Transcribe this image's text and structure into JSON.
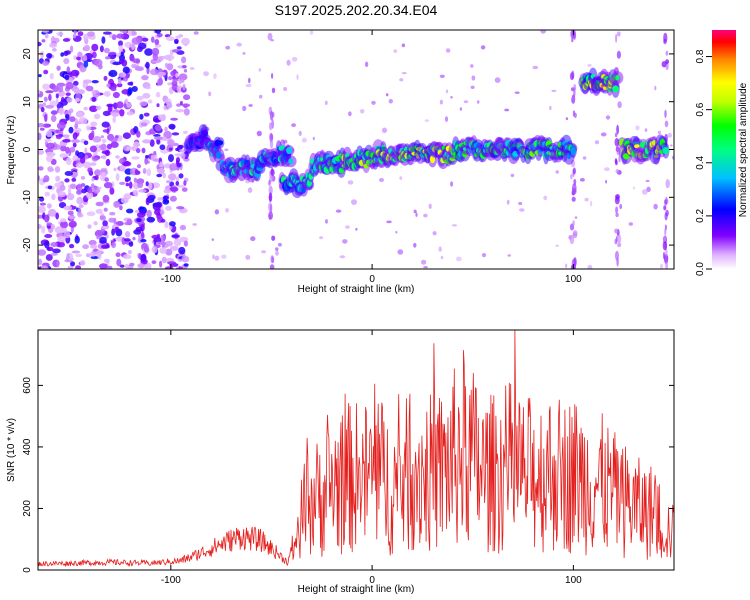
{
  "title": "S197.2025.202.20.34.E04",
  "colors": {
    "snr_line": "#e4201e",
    "spectrogram_scale": [
      "#ffffff",
      "#ff00ff",
      "#8000ff",
      "#0000ff",
      "#00c0ff",
      "#00ff80",
      "#00ff00",
      "#c0ff00",
      "#ffff00",
      "#ff8000",
      "#ff0000"
    ]
  },
  "chart_data": [
    {
      "type": "heatmap",
      "xlabel": "Height of straight line (km)",
      "ylabel": "Frequency (Hz)",
      "xlim": [
        -166,
        150
      ],
      "ylim": [
        -25,
        25
      ],
      "xticks": [
        -100,
        0,
        100
      ],
      "yticks": [
        -20,
        -10,
        0,
        10,
        20
      ],
      "colorbar": {
        "label": "Normalized spectral amplitude",
        "range": [
          0.0,
          0.9
        ],
        "ticks": [
          "0.0",
          "0.2",
          "0.4",
          "0.6",
          "0.8"
        ]
      },
      "band_segments": [
        {
          "x_start": -92,
          "x_end": -82,
          "freq": 2,
          "amp": 0.25
        },
        {
          "x_start": -82,
          "x_end": -75,
          "freq": 0,
          "amp": 0.35
        },
        {
          "x_start": -75,
          "x_end": -55,
          "freq": -4,
          "amp": 0.4
        },
        {
          "x_start": -55,
          "x_end": -40,
          "freq": -1,
          "amp": 0.35
        },
        {
          "x_start": -45,
          "x_end": -30,
          "freq": -7,
          "amp": 0.4
        },
        {
          "x_start": -30,
          "x_end": -15,
          "freq": -3,
          "amp": 0.45
        },
        {
          "x_start": -15,
          "x_end": 0,
          "freq": -2,
          "amp": 0.55
        },
        {
          "x_start": 0,
          "x_end": 40,
          "freq": -1,
          "amp": 0.6
        },
        {
          "x_start": 40,
          "x_end": 100,
          "freq": 0,
          "amp": 0.5
        },
        {
          "x_start": 104,
          "x_end": 122,
          "freq": 14,
          "amp": 0.65
        },
        {
          "x_start": 124,
          "x_end": 146,
          "freq": 0,
          "amp": 0.6
        }
      ]
    },
    {
      "type": "line",
      "xlabel": "Height of straight line (km)",
      "ylabel": "SNR (10 * v/v)",
      "xlim": [
        -166,
        150
      ],
      "ylim": [
        0,
        780
      ],
      "xticks": [
        -100,
        0,
        100
      ],
      "yticks": [
        0,
        200,
        400,
        600
      ],
      "series": [
        {
          "x": [
            -166,
            -150,
            -130,
            -110,
            -95,
            -85,
            -75,
            -65,
            -55,
            -48,
            -42,
            -38,
            -34,
            -30,
            -25,
            -20,
            -15,
            -10,
            -5,
            0,
            5,
            10,
            15,
            20,
            25,
            30,
            35,
            40,
            45,
            50,
            55,
            60,
            65,
            70,
            75,
            80,
            85,
            90,
            95,
            100,
            105,
            110,
            115,
            120,
            125,
            130,
            135,
            140,
            145,
            150
          ],
          "y": [
            20,
            22,
            25,
            22,
            30,
            55,
            85,
            110,
            95,
            60,
            25,
            100,
            200,
            240,
            250,
            290,
            300,
            320,
            310,
            330,
            320,
            280,
            300,
            350,
            330,
            330,
            340,
            370,
            420,
            380,
            330,
            330,
            340,
            360,
            320,
            330,
            330,
            340,
            320,
            330,
            310,
            300,
            290,
            260,
            240,
            220,
            200,
            200,
            150,
            120
          ]
        }
      ]
    }
  ]
}
